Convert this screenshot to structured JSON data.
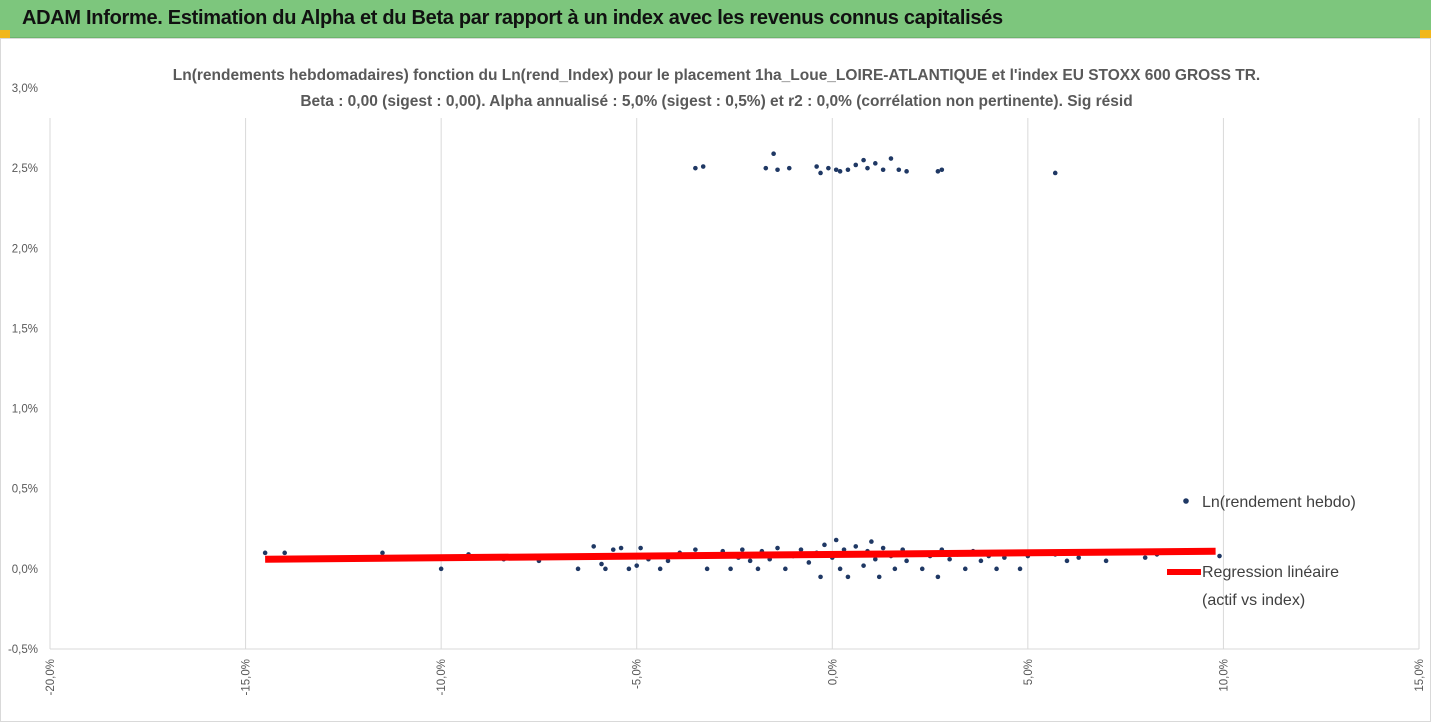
{
  "banner": {
    "title": "ADAM Informe. Estimation du Alpha et du Beta par rapport à un index avec les revenus connus capitalisés"
  },
  "colors": {
    "banner_bg": "#7dc67d",
    "corner_accent": "#f1b71c",
    "scatter": "#1f3864",
    "regression": "#ff0000",
    "grid": "#d9d9d9",
    "text": "#595959"
  },
  "chart_data": {
    "type": "scatter",
    "title_line1": "Ln(rendements hebdomadaires) fonction du Ln(rend_Index) pour le placement 1ha_Loue_LOIRE-ATLANTIQUE et l'index EU STOXX 600 GROSS TR.",
    "title_line2": "Beta : 0,00 (sigest : 0,00). Alpha annualisé : 5,0% (sigest : 0,5%) et r2 : 0,0% (corrélation non pertinente). Sig résid",
    "xlabel": "",
    "ylabel": "",
    "xlim": [
      -20,
      15
    ],
    "ylim": [
      -0.5,
      3.0
    ],
    "x_ticks": [
      -20,
      -15,
      -10,
      -5,
      0,
      5,
      10,
      15
    ],
    "x_tick_labels": [
      "-20,0%",
      "-15,0%",
      "-10,0%",
      "-5,0%",
      "0,0%",
      "5,0%",
      "10,0%",
      "15,0%"
    ],
    "y_ticks": [
      -0.5,
      0.0,
      0.5,
      1.0,
      1.5,
      2.0,
      2.5,
      3.0
    ],
    "y_tick_labels": [
      "-0,5%",
      "0,0%",
      "0,5%",
      "1,0%",
      "1,5%",
      "2,0%",
      "2,5%",
      "3,0%"
    ],
    "grid": "vertical",
    "legend_position": "right",
    "series": [
      {
        "name": "Ln(rendement hebdo)",
        "marker": "dot",
        "color": "#1f3864",
        "points": [
          [
            -14.5,
            0.1
          ],
          [
            -14.0,
            0.1
          ],
          [
            -11.5,
            0.1
          ],
          [
            -10.1,
            0.07
          ],
          [
            -10.0,
            0.0
          ],
          [
            -9.3,
            0.09
          ],
          [
            -8.4,
            0.06
          ],
          [
            -7.5,
            0.05
          ],
          [
            -7.3,
            0.07
          ],
          [
            -6.5,
            0.0
          ],
          [
            -6.4,
            0.08
          ],
          [
            -6.1,
            0.14
          ],
          [
            -5.9,
            0.03
          ],
          [
            -5.8,
            0.0
          ],
          [
            -5.6,
            0.12
          ],
          [
            -5.4,
            0.13
          ],
          [
            -5.2,
            0.0
          ],
          [
            -5.0,
            0.02
          ],
          [
            -4.9,
            0.13
          ],
          [
            -4.7,
            0.06
          ],
          [
            -4.4,
            0.0
          ],
          [
            -4.2,
            0.05
          ],
          [
            -3.9,
            0.1
          ],
          [
            -3.7,
            0.08
          ],
          [
            -3.5,
            0.12
          ],
          [
            -3.2,
            0.0
          ],
          [
            -3.0,
            0.09
          ],
          [
            -2.8,
            0.11
          ],
          [
            -2.6,
            0.0
          ],
          [
            -2.4,
            0.07
          ],
          [
            -2.3,
            0.12
          ],
          [
            -2.1,
            0.05
          ],
          [
            -1.9,
            0.0
          ],
          [
            -1.8,
            0.11
          ],
          [
            -1.6,
            0.06
          ],
          [
            -1.4,
            0.13
          ],
          [
            -1.2,
            0.0
          ],
          [
            -1.0,
            0.08
          ],
          [
            -0.8,
            0.12
          ],
          [
            -0.6,
            0.04
          ],
          [
            -0.4,
            0.1
          ],
          [
            -0.3,
            -0.05
          ],
          [
            -0.2,
            0.15
          ],
          [
            0.0,
            0.07
          ],
          [
            0.1,
            0.18
          ],
          [
            0.2,
            0.0
          ],
          [
            0.3,
            0.12
          ],
          [
            0.4,
            -0.05
          ],
          [
            0.5,
            0.09
          ],
          [
            0.6,
            0.14
          ],
          [
            0.8,
            0.02
          ],
          [
            0.9,
            0.11
          ],
          [
            1.0,
            0.17
          ],
          [
            1.1,
            0.06
          ],
          [
            1.2,
            -0.05
          ],
          [
            1.3,
            0.13
          ],
          [
            1.5,
            0.08
          ],
          [
            1.6,
            0.0
          ],
          [
            1.8,
            0.12
          ],
          [
            1.9,
            0.05
          ],
          [
            2.1,
            0.1
          ],
          [
            2.3,
            0.0
          ],
          [
            2.5,
            0.08
          ],
          [
            2.7,
            -0.05
          ],
          [
            2.8,
            0.12
          ],
          [
            3.0,
            0.06
          ],
          [
            3.2,
            0.09
          ],
          [
            3.4,
            0.0
          ],
          [
            3.6,
            0.11
          ],
          [
            3.8,
            0.05
          ],
          [
            4.0,
            0.08
          ],
          [
            4.2,
            0.0
          ],
          [
            4.4,
            0.07
          ],
          [
            4.6,
            0.1
          ],
          [
            4.8,
            0.0
          ],
          [
            5.0,
            0.08
          ],
          [
            5.3,
            0.1
          ],
          [
            5.7,
            0.09
          ],
          [
            6.0,
            0.05
          ],
          [
            6.3,
            0.07
          ],
          [
            7.0,
            0.05
          ],
          [
            7.5,
            0.1
          ],
          [
            8.0,
            0.07
          ],
          [
            8.3,
            0.09
          ],
          [
            9.9,
            0.08
          ],
          [
            -3.5,
            2.5
          ],
          [
            -3.3,
            2.51
          ],
          [
            -1.7,
            2.5
          ],
          [
            -1.5,
            2.59
          ],
          [
            -1.4,
            2.49
          ],
          [
            -1.1,
            2.5
          ],
          [
            -0.4,
            2.51
          ],
          [
            -0.3,
            2.47
          ],
          [
            -0.1,
            2.5
          ],
          [
            0.1,
            2.49
          ],
          [
            0.2,
            2.48
          ],
          [
            0.4,
            2.49
          ],
          [
            0.6,
            2.52
          ],
          [
            0.8,
            2.55
          ],
          [
            0.9,
            2.5
          ],
          [
            1.1,
            2.53
          ],
          [
            1.3,
            2.49
          ],
          [
            1.5,
            2.56
          ],
          [
            1.7,
            2.49
          ],
          [
            1.9,
            2.48
          ],
          [
            2.7,
            2.48
          ],
          [
            2.8,
            2.49
          ],
          [
            5.7,
            2.47
          ]
        ]
      },
      {
        "name": "Regression linéaire (actif vs index)",
        "legend_line1": "Regression linéaire",
        "legend_line2": "(actif vs index)",
        "type": "line",
        "color": "#ff0000",
        "points": [
          [
            -14.5,
            0.06
          ],
          [
            9.8,
            0.11
          ]
        ]
      }
    ]
  }
}
